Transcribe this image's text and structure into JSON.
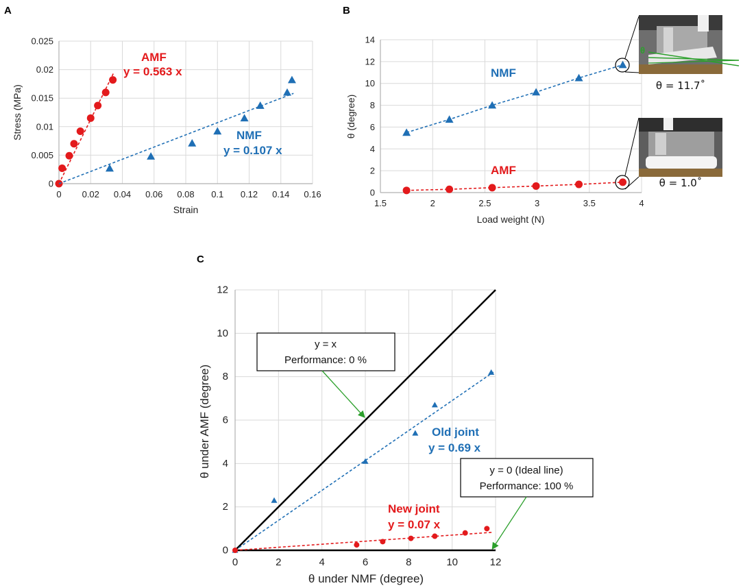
{
  "colors": {
    "amf": "#e31a1c",
    "nmf": "#1f6fb5",
    "arrow": "#2ca02c",
    "grid": "#d9d9d9",
    "axis": "#b0b0b0"
  },
  "chart_data": [
    {
      "id": "A",
      "panel_label": "A",
      "type": "scatter",
      "xlabel": "Strain",
      "ylabel": "Stress (MPa)",
      "xlim": [
        0,
        0.16
      ],
      "ylim": [
        0,
        0.025
      ],
      "xticks": [
        0,
        0.02,
        0.04,
        0.06,
        0.08,
        0.1,
        0.12,
        0.14,
        0.16
      ],
      "yticks": [
        0,
        0.005,
        0.01,
        0.015,
        0.02,
        0.025
      ],
      "xtick_labels": [
        "0",
        "0.02",
        "0.04",
        "0.06",
        "0.08",
        "0.1",
        "0.12",
        "0.14",
        "0.16"
      ],
      "ytick_labels": [
        "0",
        "0.005",
        "0.01",
        "0.015",
        "0.02",
        "0.025"
      ],
      "series": [
        {
          "name": "AMF",
          "color": "#e31a1c",
          "marker": "circle",
          "x": [
            0,
            0.002,
            0.0065,
            0.0095,
            0.0135,
            0.02,
            0.0245,
            0.0295,
            0.034
          ],
          "y": [
            0,
            0.0027,
            0.0049,
            0.007,
            0.0092,
            0.0115,
            0.0137,
            0.016,
            0.0182
          ],
          "fit": {
            "slope": 0.563,
            "x_range": [
              0,
              0.0345
            ]
          }
        },
        {
          "name": "NMF",
          "color": "#1f6fb5",
          "marker": "triangle",
          "x": [
            0.032,
            0.058,
            0.084,
            0.1,
            0.117,
            0.127,
            0.144,
            0.147
          ],
          "y": [
            0.0027,
            0.0048,
            0.0071,
            0.0092,
            0.0115,
            0.0137,
            0.016,
            0.0182
          ],
          "fit": {
            "slope": 0.107,
            "x_range": [
              0,
              0.148
            ]
          }
        }
      ],
      "annotations": [
        {
          "text": "AMF",
          "color": "#e31a1c"
        },
        {
          "text": "y = 0.563 x",
          "color": "#e31a1c"
        },
        {
          "text": "NMF",
          "color": "#1f6fb5"
        },
        {
          "text": "y = 0.107 x",
          "color": "#1f6fb5"
        }
      ]
    },
    {
      "id": "B",
      "panel_label": "B",
      "type": "line",
      "xlabel": "Load weight (N)",
      "ylabel": "θ (degree)",
      "xlim": [
        1.5,
        4
      ],
      "ylim": [
        0,
        14
      ],
      "xticks": [
        1.5,
        2,
        2.5,
        3,
        3.5,
        4
      ],
      "yticks": [
        0,
        2,
        4,
        6,
        8,
        10,
        12,
        14
      ],
      "xtick_labels": [
        "1.5",
        "2",
        "2.5",
        "3",
        "3.5",
        "4"
      ],
      "ytick_labels": [
        "0",
        "2",
        "4",
        "6",
        "8",
        "10",
        "12",
        "14"
      ],
      "series": [
        {
          "name": "NMF",
          "color": "#1f6fb5",
          "marker": "triangle",
          "x": [
            1.75,
            2.16,
            2.57,
            2.99,
            3.4,
            3.82
          ],
          "y": [
            5.5,
            6.7,
            8.0,
            9.2,
            10.5,
            11.7
          ]
        },
        {
          "name": "AMF",
          "color": "#e31a1c",
          "marker": "circle",
          "x": [
            1.75,
            2.16,
            2.57,
            2.99,
            3.4,
            3.82
          ],
          "y": [
            0.2,
            0.3,
            0.45,
            0.6,
            0.75,
            0.95
          ]
        }
      ],
      "annotations": [
        {
          "text": "NMF",
          "color": "#1f6fb5"
        },
        {
          "text": "AMF",
          "color": "#e31a1c"
        }
      ],
      "photos": [
        {
          "caption": "θ = 11.7˚",
          "angle_symbol": "θ"
        },
        {
          "caption": "θ = 1.0˚"
        }
      ]
    },
    {
      "id": "C",
      "panel_label": "C",
      "type": "scatter",
      "xlabel": "θ under NMF (degree)",
      "ylabel": "θ under AMF (degree)",
      "xlim": [
        0,
        12
      ],
      "ylim": [
        0,
        12
      ],
      "xticks": [
        0,
        2,
        4,
        6,
        8,
        10,
        12
      ],
      "yticks": [
        0,
        2,
        4,
        6,
        8,
        10,
        12
      ],
      "xtick_labels": [
        "0",
        "2",
        "4",
        "6",
        "8",
        "10",
        "12"
      ],
      "ytick_labels": [
        "0",
        "2",
        "4",
        "6",
        "8",
        "10",
        "12"
      ],
      "series": [
        {
          "name": "Old joint",
          "color": "#1f6fb5",
          "marker": "triangle",
          "x": [
            0,
            1.8,
            6.0,
            8.3,
            9.2,
            11.8
          ],
          "y": [
            0,
            2.3,
            4.1,
            5.4,
            6.7,
            8.2
          ],
          "fit": {
            "slope": 0.69,
            "x_range": [
              0,
              11.9
            ]
          }
        },
        {
          "name": "New joint",
          "color": "#e31a1c",
          "marker": "circle",
          "x": [
            0,
            5.6,
            6.8,
            8.1,
            9.2,
            10.6,
            11.6
          ],
          "y": [
            0,
            0.25,
            0.4,
            0.55,
            0.65,
            0.8,
            1.0
          ],
          "fit": {
            "slope": 0.07,
            "x_range": [
              0,
              11.9
            ]
          }
        }
      ],
      "reference_lines": [
        {
          "name": "y = x",
          "slope": 1,
          "color": "#000000"
        },
        {
          "name": "y = 0",
          "slope": 0,
          "color": "#000000"
        }
      ],
      "annotations": [
        {
          "text": "Old joint",
          "color": "#1f6fb5"
        },
        {
          "text": "y = 0.69 x",
          "color": "#1f6fb5"
        },
        {
          "text": "New joint",
          "color": "#e31a1c"
        },
        {
          "text": "y = 0.07 x",
          "color": "#e31a1c"
        }
      ],
      "boxes": [
        {
          "line1": "y = x",
          "line2": "Performance: 0 %"
        },
        {
          "line1": "y = 0 (Ideal line)",
          "line2": "Performance: 100 %"
        }
      ]
    }
  ]
}
